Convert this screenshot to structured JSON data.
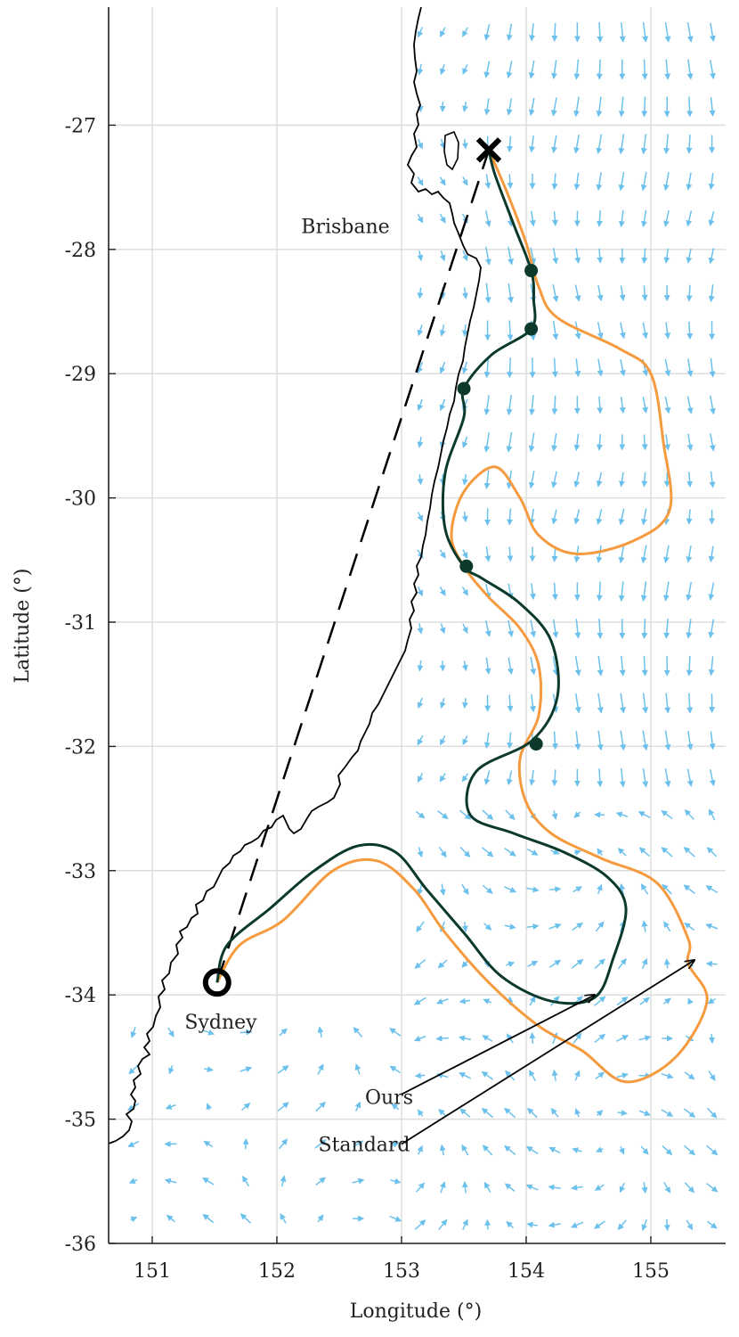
{
  "chart_data": {
    "type": "map",
    "xlabel": "Longitude (°)",
    "ylabel": "Latitude (°)",
    "xlim": [
      150.65,
      155.6
    ],
    "ylim": [
      -36.0,
      -26.05
    ],
    "xticks": [
      151,
      152,
      153,
      154,
      155
    ],
    "yticks": [
      -27,
      -28,
      -29,
      -30,
      -31,
      -32,
      -33,
      -34,
      -35,
      -36
    ],
    "grid": true,
    "colors": {
      "coastline": "#000000",
      "current_arrows": "#6cc1ec",
      "ours": "#0b3a2c",
      "standard": "#f59a3e",
      "straight_line": "#000000",
      "grid": "#dddddd"
    },
    "places": [
      {
        "name": "Brisbane",
        "lon": 152.55,
        "lat": -27.87
      },
      {
        "name": "Sydney",
        "lon": 151.55,
        "lat": -34.27
      }
    ],
    "start": {
      "marker": "circle",
      "lon": 151.52,
      "lat": -33.9
    },
    "goal": {
      "marker": "x",
      "lon": 153.7,
      "lat": -27.2
    },
    "straight_line": [
      [
        151.52,
        -33.9
      ],
      [
        153.7,
        -27.2
      ]
    ],
    "series": [
      {
        "name": "Ours",
        "points": [
          [
            151.52,
            -33.9
          ],
          [
            151.6,
            -33.6
          ],
          [
            151.95,
            -33.3
          ],
          [
            152.3,
            -33.0
          ],
          [
            152.65,
            -32.8
          ],
          [
            152.95,
            -32.85
          ],
          [
            153.2,
            -33.15
          ],
          [
            153.5,
            -33.5
          ],
          [
            153.8,
            -33.85
          ],
          [
            154.2,
            -34.05
          ],
          [
            154.55,
            -34.02
          ],
          [
            154.7,
            -33.7
          ],
          [
            154.8,
            -33.3
          ],
          [
            154.65,
            -33.05
          ],
          [
            154.3,
            -32.85
          ],
          [
            153.9,
            -32.7
          ],
          [
            153.55,
            -32.55
          ],
          [
            153.6,
            -32.2
          ],
          [
            154.05,
            -31.95
          ],
          [
            154.25,
            -31.6
          ],
          [
            154.2,
            -31.15
          ],
          [
            153.95,
            -30.85
          ],
          [
            153.65,
            -30.65
          ],
          [
            153.5,
            -30.55
          ],
          [
            153.35,
            -30.25
          ],
          [
            153.35,
            -29.8
          ],
          [
            153.5,
            -29.35
          ],
          [
            153.5,
            -29.12
          ],
          [
            153.72,
            -28.85
          ],
          [
            154.04,
            -28.64
          ],
          [
            154.06,
            -28.4
          ],
          [
            154.04,
            -28.17
          ],
          [
            153.9,
            -27.8
          ],
          [
            153.75,
            -27.4
          ],
          [
            153.7,
            -27.2
          ]
        ],
        "waypoints": [
          [
            154.04,
            -28.17
          ],
          [
            154.04,
            -28.64
          ],
          [
            153.5,
            -29.12
          ],
          [
            153.52,
            -30.55
          ],
          [
            154.08,
            -31.98
          ]
        ]
      },
      {
        "name": "Standard",
        "points": [
          [
            151.52,
            -33.9
          ],
          [
            151.7,
            -33.6
          ],
          [
            152.05,
            -33.4
          ],
          [
            152.45,
            -33.0
          ],
          [
            152.8,
            -32.92
          ],
          [
            153.1,
            -33.15
          ],
          [
            153.35,
            -33.5
          ],
          [
            153.7,
            -33.9
          ],
          [
            154.1,
            -34.25
          ],
          [
            154.45,
            -34.45
          ],
          [
            154.8,
            -34.7
          ],
          [
            155.2,
            -34.5
          ],
          [
            155.45,
            -34.05
          ],
          [
            155.3,
            -33.75
          ],
          [
            155.3,
            -33.55
          ],
          [
            155.05,
            -33.1
          ],
          [
            154.6,
            -32.9
          ],
          [
            154.2,
            -32.7
          ],
          [
            154.0,
            -32.45
          ],
          [
            153.95,
            -32.1
          ],
          [
            154.1,
            -31.75
          ],
          [
            154.1,
            -31.35
          ],
          [
            153.95,
            -31.05
          ],
          [
            153.7,
            -30.8
          ],
          [
            153.5,
            -30.55
          ],
          [
            153.4,
            -30.3
          ],
          [
            153.5,
            -29.95
          ],
          [
            153.75,
            -29.75
          ],
          [
            153.95,
            -30.0
          ],
          [
            154.1,
            -30.3
          ],
          [
            154.4,
            -30.45
          ],
          [
            154.85,
            -30.35
          ],
          [
            155.15,
            -30.1
          ],
          [
            155.1,
            -29.55
          ],
          [
            155.0,
            -29.0
          ],
          [
            154.75,
            -28.8
          ],
          [
            154.25,
            -28.55
          ],
          [
            154.1,
            -28.3
          ],
          [
            154.0,
            -27.95
          ],
          [
            153.85,
            -27.55
          ],
          [
            153.7,
            -27.2
          ]
        ]
      }
    ],
    "legend": [
      {
        "label": "Ours",
        "text_lon": 152.9,
        "text_lat": -34.82,
        "line_start": [
          153.0,
          -34.8
        ],
        "arrow_tip": [
          154.55,
          -34.0
        ]
      },
      {
        "label": "Standard",
        "text_lon": 152.7,
        "text_lat": -35.2,
        "line_start": [
          153.0,
          -35.2
        ],
        "arrow_tip": [
          155.35,
          -33.72
        ]
      }
    ]
  }
}
